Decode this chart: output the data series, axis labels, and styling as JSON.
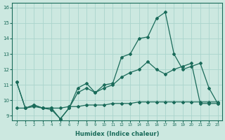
{
  "xlabel": "Humidex (Indice chaleur)",
  "background_color": "#cce8e0",
  "line_color": "#1a6b5a",
  "grid_color": "#aad4cc",
  "xlim": [
    -0.5,
    23.5
  ],
  "ylim": [
    8.7,
    16.3
  ],
  "xticks": [
    0,
    1,
    2,
    3,
    4,
    5,
    6,
    7,
    8,
    9,
    10,
    11,
    12,
    13,
    14,
    15,
    16,
    17,
    18,
    19,
    20,
    21,
    22,
    23
  ],
  "yticks": [
    9,
    10,
    11,
    12,
    13,
    14,
    15,
    16
  ],
  "series1_x": [
    0,
    1,
    2,
    3,
    4,
    5,
    6,
    7,
    8,
    9,
    10,
    11,
    12,
    13,
    14,
    15,
    16,
    17,
    18,
    19,
    20,
    21,
    22,
    23
  ],
  "series1_y": [
    11.2,
    9.5,
    9.7,
    9.5,
    9.5,
    8.8,
    9.5,
    10.8,
    11.1,
    10.5,
    11.0,
    11.1,
    12.8,
    13.0,
    14.0,
    14.1,
    15.3,
    15.7,
    13.0,
    12.0,
    12.2,
    12.4,
    10.8,
    9.8
  ],
  "series2_x": [
    0,
    1,
    2,
    3,
    4,
    5,
    6,
    7,
    8,
    9,
    10,
    11,
    12,
    13,
    14,
    15,
    16,
    17,
    18,
    19,
    20,
    21,
    22,
    23
  ],
  "series2_y": [
    11.2,
    9.5,
    9.7,
    9.5,
    9.4,
    8.8,
    9.5,
    10.5,
    10.8,
    10.5,
    10.8,
    11.0,
    11.5,
    11.8,
    12.0,
    12.5,
    12.0,
    11.7,
    12.0,
    12.2,
    12.4,
    9.8,
    9.8,
    9.8
  ],
  "series3_x": [
    0,
    1,
    2,
    3,
    4,
    5,
    6,
    7,
    8,
    9,
    10,
    11,
    12,
    13,
    14,
    15,
    16,
    17,
    18,
    19,
    20,
    21,
    22,
    23
  ],
  "series3_y": [
    9.5,
    9.5,
    9.6,
    9.5,
    9.5,
    9.5,
    9.6,
    9.6,
    9.7,
    9.7,
    9.7,
    9.8,
    9.8,
    9.8,
    9.9,
    9.9,
    9.9,
    9.9,
    9.9,
    9.9,
    9.9,
    9.9,
    9.9,
    9.9
  ]
}
